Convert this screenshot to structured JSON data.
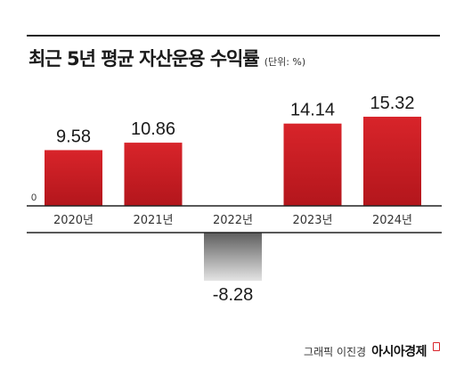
{
  "title": "최근 5년 평균 자산운용 수익률",
  "unit": "(단위: %)",
  "credit": {
    "text": "그래픽 이진경",
    "brand": "아시아경제"
  },
  "colors": {
    "positive": "#d8242a",
    "negative": "#8a8a8a",
    "axis": "#222222"
  },
  "chart_data": {
    "type": "bar",
    "title": "최근 5년 평균 자산운용 수익률",
    "unit": "(단위: %)",
    "categories": [
      "2020년",
      "2021년",
      "2022년",
      "2023년",
      "2024년"
    ],
    "values": [
      9.58,
      10.86,
      -8.28,
      14.14,
      15.32
    ],
    "data_labels": [
      "9.58",
      "10.86",
      "-8.28",
      "14.14",
      "15.32"
    ],
    "y_zero_label": "0",
    "ylim": [
      -9,
      16
    ],
    "grid": false,
    "legend": "none"
  }
}
